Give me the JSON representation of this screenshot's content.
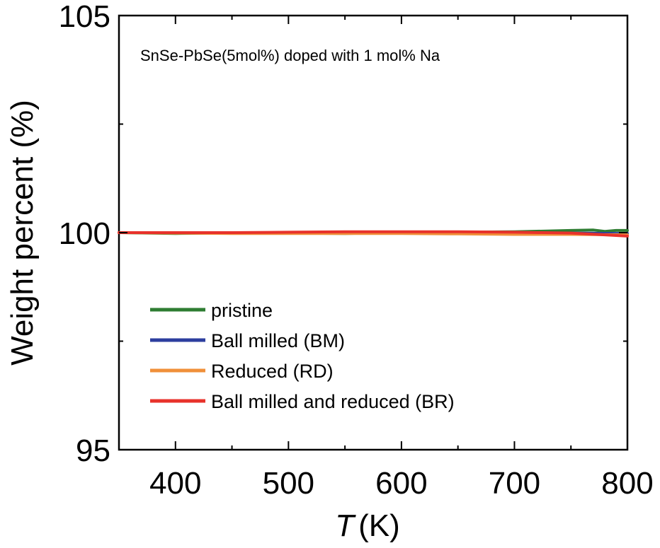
{
  "chart_data": {
    "type": "line",
    "title": "",
    "annotation": "SnSe-PbSe(5mol%) doped with 1 mol% Na",
    "xlabel": {
      "symbol": "T",
      "unit": "(K)"
    },
    "ylabel": "Weight percent (%)",
    "xlim": [
      350,
      800
    ],
    "ylim": [
      95,
      105
    ],
    "xticks": [
      400,
      500,
      600,
      700,
      800
    ],
    "xtick_labels": [
      "400",
      "500",
      "600",
      "700",
      "800"
    ],
    "yticks": [
      95,
      100,
      105
    ],
    "ytick_labels": [
      "95",
      "100",
      "105"
    ],
    "grid": false,
    "legend": {
      "position": "bottom-left"
    },
    "series": [
      {
        "name": "pristine",
        "color": "#2e7d32",
        "x": [
          350,
          400,
          450,
          500,
          550,
          600,
          650,
          700,
          750,
          770,
          780,
          790,
          800
        ],
        "y": [
          100.0,
          99.98,
          99.99,
          99.99,
          99.98,
          100.0,
          100.01,
          100.02,
          100.05,
          100.06,
          100.03,
          100.05,
          100.05
        ]
      },
      {
        "name": "Ball milled (BM)",
        "color": "#2c3e9e",
        "x": [
          350,
          400,
          450,
          500,
          550,
          600,
          650,
          700,
          750,
          800
        ],
        "y": [
          100.0,
          100.0,
          99.99,
          100.0,
          100.0,
          100.01,
          100.0,
          100.0,
          99.99,
          99.98
        ]
      },
      {
        "name": "Reduced  (RD)",
        "color": "#f0903a",
        "x": [
          350,
          400,
          450,
          500,
          550,
          600,
          650,
          700,
          750,
          800
        ],
        "y": [
          100.0,
          99.99,
          99.98,
          99.98,
          99.98,
          99.98,
          99.97,
          99.96,
          99.96,
          99.95
        ]
      },
      {
        "name": "Ball milled and reduced (BR)",
        "color": "#e8322b",
        "x": [
          350,
          400,
          450,
          500,
          550,
          600,
          650,
          700,
          750,
          780,
          800
        ],
        "y": [
          100.0,
          100.0,
          100.0,
          100.01,
          100.02,
          100.02,
          100.02,
          100.01,
          99.99,
          99.95,
          99.92
        ]
      }
    ]
  }
}
